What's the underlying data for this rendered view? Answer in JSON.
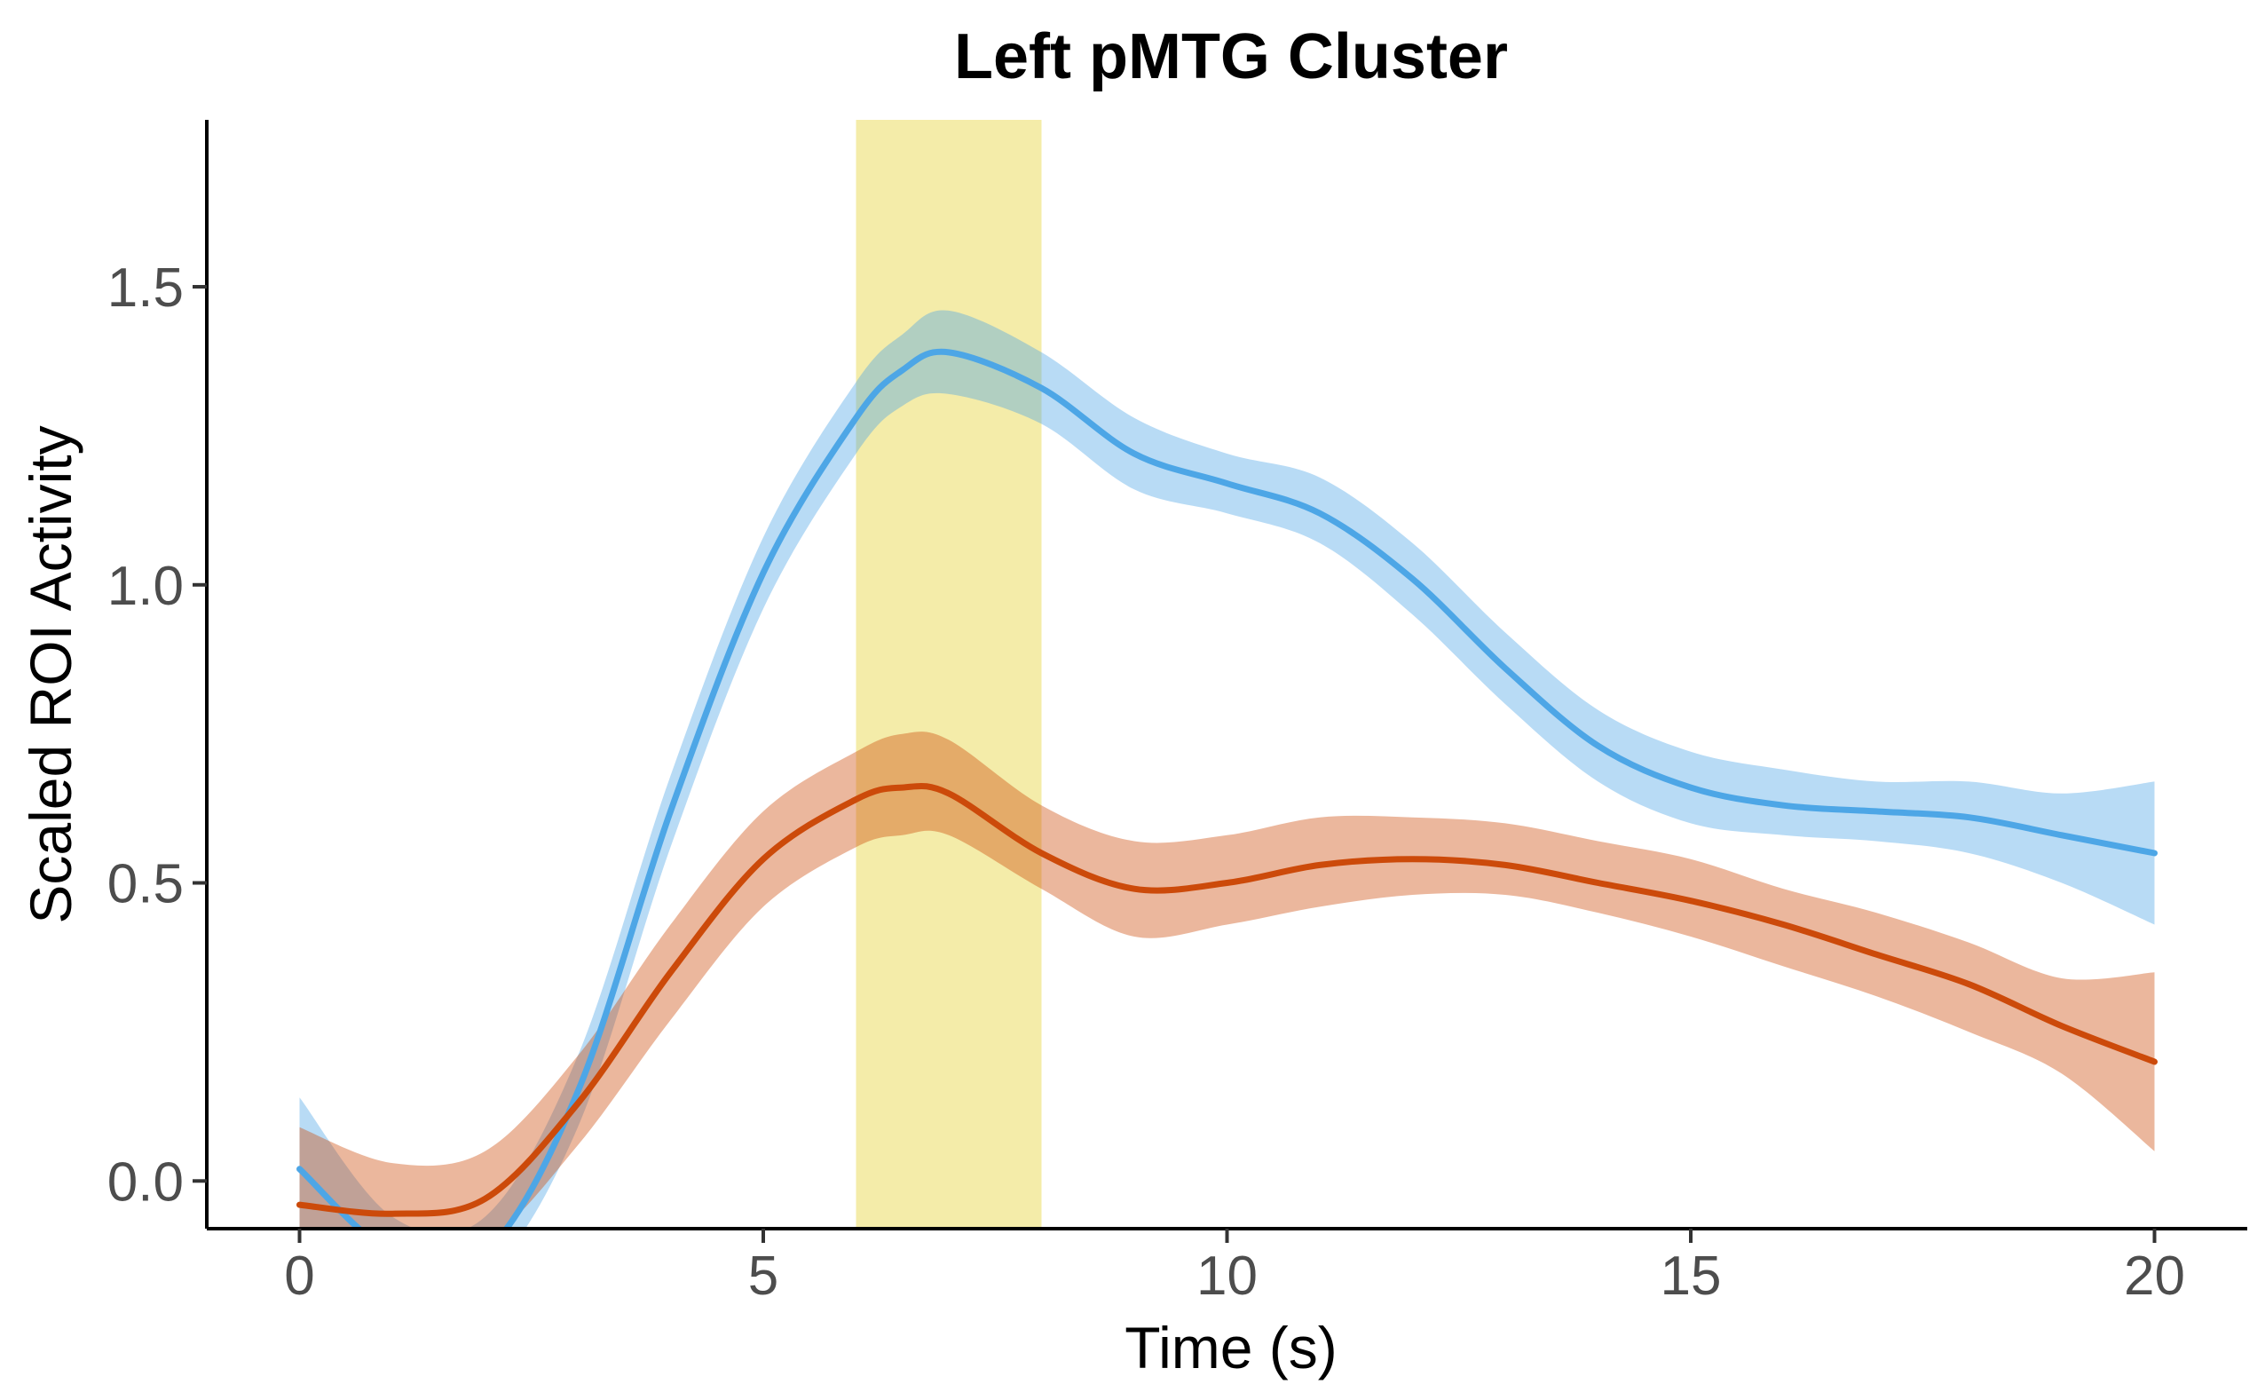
{
  "chart_data": {
    "type": "line",
    "title": "Left pMTG Cluster",
    "xlabel": "Time (s)",
    "ylabel": "Scaled ROI Activity",
    "xlim": [
      -1,
      21
    ],
    "ylim": [
      -0.08,
      1.78
    ],
    "xticks": [
      0,
      5,
      10,
      15,
      20
    ],
    "xtick_labels": [
      "0",
      "5",
      "10",
      "15",
      "20"
    ],
    "yticks": [
      0.0,
      0.5,
      1.0,
      1.5
    ],
    "ytick_labels": [
      "0.0",
      "0.5",
      "1.0",
      "1.5"
    ],
    "grid": false,
    "legend": "none",
    "highlight": {
      "x_start": 6,
      "x_end": 8,
      "color": "#f0e68c"
    },
    "series": [
      {
        "color": "#4da6e6",
        "x": [
          0,
          1,
          2,
          3,
          4,
          5,
          6,
          6.5,
          7,
          8,
          9,
          10,
          11,
          12,
          13,
          14,
          15,
          16,
          17,
          18,
          19,
          20
        ],
        "values": [
          0.02,
          -0.12,
          -0.12,
          0.15,
          0.62,
          1.02,
          1.28,
          1.36,
          1.39,
          1.33,
          1.22,
          1.17,
          1.12,
          1.01,
          0.86,
          0.73,
          0.66,
          0.63,
          0.62,
          0.61,
          0.58,
          0.55
        ],
        "lower": [
          -0.1,
          -0.16,
          -0.16,
          0.09,
          0.56,
          0.96,
          1.22,
          1.3,
          1.32,
          1.27,
          1.16,
          1.12,
          1.07,
          0.95,
          0.8,
          0.67,
          0.6,
          0.58,
          0.57,
          0.55,
          0.5,
          0.43
        ],
        "upper": [
          0.14,
          -0.06,
          -0.06,
          0.21,
          0.68,
          1.08,
          1.34,
          1.42,
          1.46,
          1.39,
          1.28,
          1.22,
          1.18,
          1.07,
          0.92,
          0.79,
          0.72,
          0.69,
          0.67,
          0.67,
          0.65,
          0.67
        ]
      },
      {
        "color": "#cc4a0a",
        "x": [
          0,
          1,
          2,
          3,
          4,
          5,
          6,
          6.5,
          7,
          8,
          9,
          10,
          11,
          12,
          13,
          14,
          15,
          16,
          17,
          18,
          19,
          20
        ],
        "values": [
          -0.04,
          -0.055,
          -0.03,
          0.13,
          0.35,
          0.54,
          0.64,
          0.66,
          0.65,
          0.55,
          0.49,
          0.5,
          0.53,
          0.54,
          0.53,
          0.5,
          0.47,
          0.43,
          0.38,
          0.33,
          0.26,
          0.2
        ],
        "lower": [
          -0.1,
          -0.1,
          -0.1,
          0.06,
          0.27,
          0.46,
          0.56,
          0.58,
          0.58,
          0.49,
          0.41,
          0.43,
          0.46,
          0.48,
          0.48,
          0.45,
          0.41,
          0.36,
          0.31,
          0.25,
          0.18,
          0.05
        ],
        "upper": [
          0.09,
          0.03,
          0.05,
          0.21,
          0.43,
          0.62,
          0.72,
          0.75,
          0.74,
          0.63,
          0.57,
          0.58,
          0.61,
          0.61,
          0.6,
          0.57,
          0.54,
          0.49,
          0.45,
          0.4,
          0.34,
          0.35
        ]
      }
    ]
  }
}
